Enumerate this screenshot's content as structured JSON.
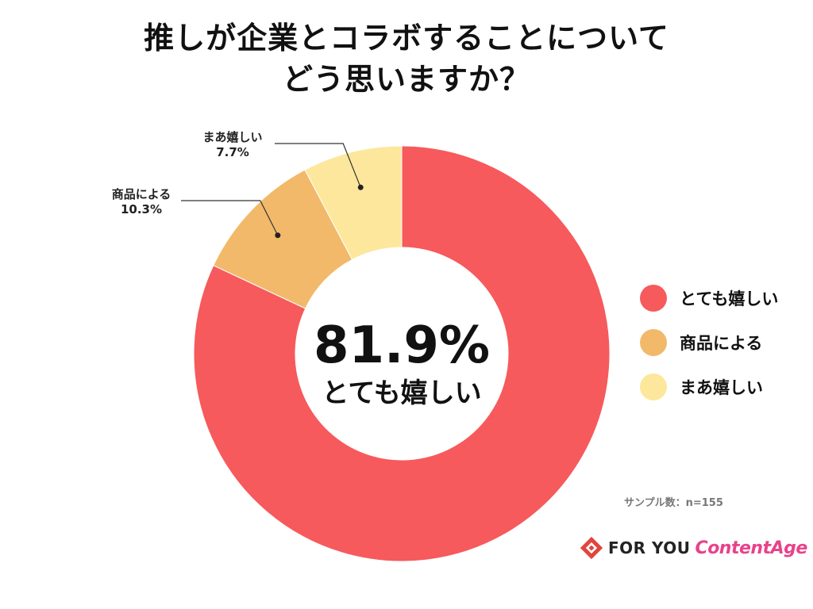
{
  "title": {
    "line1": "推しが企業とコラボすることについて",
    "line2": "どう思いますか？"
  },
  "chart_data": {
    "type": "pie",
    "donut": true,
    "categories": [
      "とても嬉しい",
      "商品による",
      "まあ嬉しい"
    ],
    "values": [
      81.9,
      10.3,
      7.7
    ],
    "colors": [
      "#f65a5c",
      "#f2b96a",
      "#fde79c"
    ],
    "value_labels": [
      "81.9%",
      "10.3%",
      "7.7%"
    ],
    "legend_position": "right",
    "start": "top",
    "direction": "clockwise"
  },
  "center": {
    "value": "81.9%",
    "label": "とても嬉しい"
  },
  "callouts": [
    {
      "name": "まあ嬉しい",
      "value": "7.7%"
    },
    {
      "name": "商品による",
      "value": "10.3%"
    }
  ],
  "legend": [
    {
      "label": "とても嬉しい",
      "color": "#f65a5c"
    },
    {
      "label": "商品による",
      "color": "#f2b96a"
    },
    {
      "label": "まあ嬉しい",
      "color": "#fde79c"
    }
  ],
  "sample_text": "サンプル数：n=155",
  "brand": {
    "foryou": "FOR YOU",
    "content": "ContentAge"
  }
}
